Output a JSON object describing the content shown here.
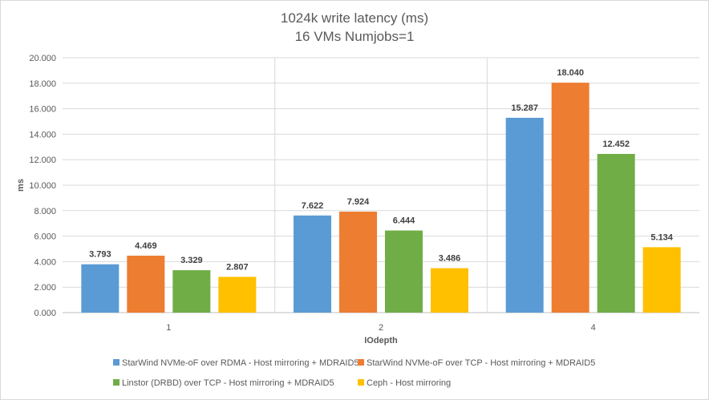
{
  "chart_data": {
    "type": "bar",
    "title": [
      "1024k write latency (ms)",
      "16 VMs Numjobs=1"
    ],
    "xlabel": "IOdepth",
    "ylabel": "ms",
    "categories": [
      "1",
      "2",
      "4"
    ],
    "ylim": [
      0,
      20
    ],
    "yticks": [
      "0.000",
      "2.000",
      "4.000",
      "6.000",
      "8.000",
      "10.000",
      "12.000",
      "14.000",
      "16.000",
      "18.000",
      "20.000"
    ],
    "grid": true,
    "legend_position": "bottom",
    "series": [
      {
        "name": "StarWind NVMe-oF over RDMA - Host mirroring + MDRAID5",
        "color": "#5B9BD5",
        "values": [
          3.793,
          7.622,
          15.287
        ],
        "labels": [
          "3.793",
          "7.622",
          "15.287"
        ]
      },
      {
        "name": "StarWind NVMe-oF over TCP - Host mirroring + MDRAID5",
        "color": "#ED7D31",
        "values": [
          4.469,
          7.924,
          18.04
        ],
        "labels": [
          "4.469",
          "7.924",
          "18.040"
        ]
      },
      {
        "name": "Linstor (DRBD) over TCP - Host mirroring + MDRAID5",
        "color": "#70AD47",
        "values": [
          3.329,
          6.444,
          12.452
        ],
        "labels": [
          "3.329",
          "6.444",
          "12.452"
        ]
      },
      {
        "name": "Ceph - Host mirroring",
        "color": "#FFC000",
        "values": [
          2.807,
          3.486,
          5.134
        ],
        "labels": [
          "2.807",
          "3.486",
          "5.134"
        ]
      }
    ]
  }
}
